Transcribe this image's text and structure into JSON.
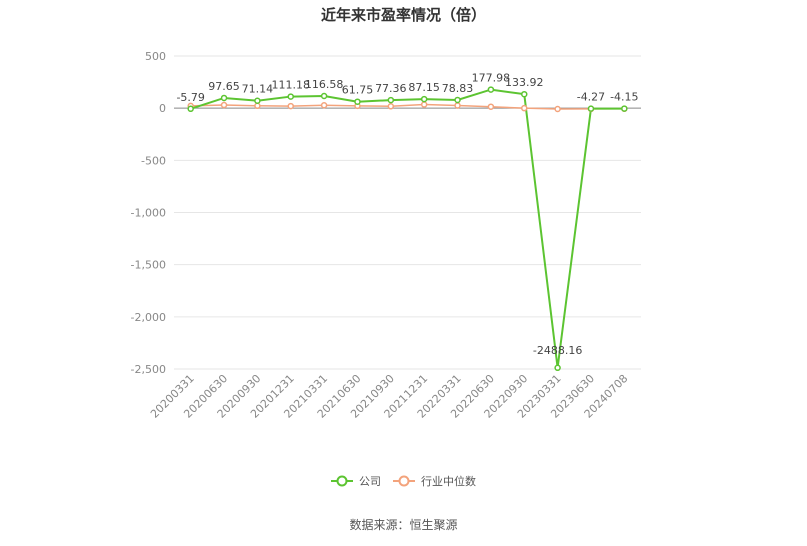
{
  "chart_data": {
    "type": "line",
    "title": "近年来市盈率情况（倍）",
    "source": "数据来源：恒生聚源",
    "categories": [
      "20200331",
      "20200630",
      "20200930",
      "20201231",
      "20210331",
      "20210630",
      "20210930",
      "20211231",
      "20220331",
      "20220630",
      "20220930",
      "20230331",
      "20230630",
      "20240708"
    ],
    "ylim": [
      -2500,
      500
    ],
    "yticks": [
      500,
      0,
      -500,
      -1000,
      -1500,
      -2000,
      -2500
    ],
    "ytick_labels": [
      "500",
      "0",
      "-500",
      "-1,000",
      "-1,500",
      "-2,000",
      "-2,500"
    ],
    "grid": true,
    "legend_position": "bottom",
    "series": [
      {
        "name": "公司",
        "color": "#5cc431",
        "values": [
          -5.79,
          97.65,
          71.14,
          111.18,
          116.58,
          61.75,
          77.36,
          87.15,
          78.83,
          177.98,
          133.92,
          -2488.16,
          -4.27,
          -4.15
        ],
        "labels": [
          "-5.79",
          "97.65",
          "71.14",
          "111.18",
          "116.58",
          "61.75",
          "77.36",
          "87.15",
          "78.83",
          "177.98",
          "133.92",
          "-2488.16",
          "-4.27",
          "-4.15"
        ]
      },
      {
        "name": "行业中位数",
        "color": "#f3a37c",
        "values": [
          22,
          30,
          23,
          20,
          28,
          22,
          18,
          35,
          26,
          14,
          0,
          -8,
          -7,
          -6
        ]
      }
    ]
  }
}
